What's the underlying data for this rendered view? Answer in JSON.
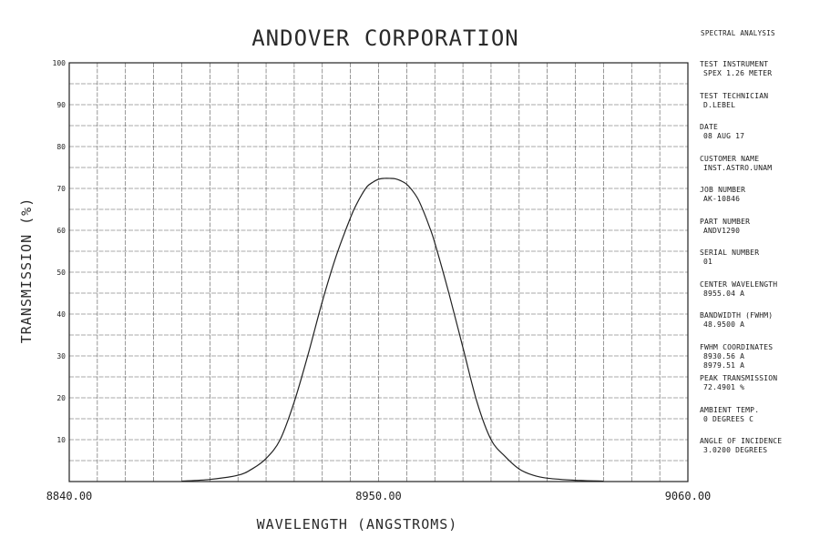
{
  "chart_data": {
    "type": "line",
    "title": "ANDOVER CORPORATION",
    "xlabel": "WAVELENGTH (ANGSTROMS)",
    "ylabel": "TRANSMISSION (%)",
    "xlim": [
      8840,
      9060
    ],
    "ylim": [
      0,
      100
    ],
    "x_tick_labels": [
      "8840.00",
      "8950.00",
      "9060.00"
    ],
    "y_tick_labels": [
      "10",
      "20",
      "30",
      "40",
      "50",
      "60",
      "70",
      "80",
      "90",
      "100"
    ],
    "grid": true,
    "series": [
      {
        "x": [
          8880,
          8890,
          8900,
          8905,
          8910,
          8915,
          8920,
          8925,
          8930,
          8935,
          8940,
          8942,
          8944,
          8946,
          8948,
          8950,
          8952,
          8954,
          8956,
          8958,
          8960,
          8962,
          8964,
          8966,
          8968,
          8970,
          8975,
          8980,
          8985,
          8990,
          8995,
          9000,
          9005,
          9010,
          9020,
          9030
        ],
        "y": [
          0.1,
          0.5,
          1.5,
          3,
          5.5,
          10,
          19,
          30.5,
          43,
          54,
          63,
          66,
          68.5,
          70.5,
          71.5,
          72.2,
          72.4,
          72.4,
          72.3,
          71.8,
          71,
          69.5,
          67.5,
          64.5,
          61,
          57,
          45,
          32,
          19,
          10,
          6,
          3,
          1.5,
          0.8,
          0.3,
          0.1
        ]
      }
    ]
  },
  "info_panel": {
    "header": "SPECTRAL ANALYSIS",
    "fields": [
      {
        "label": "TEST INSTRUMENT",
        "value": "SPEX 1.26 METER"
      },
      {
        "label": "TEST TECHNICIAN",
        "value": "D.LEBEL"
      },
      {
        "label": "DATE",
        "value": "08 AUG 17"
      },
      {
        "label": "CUSTOMER NAME",
        "value": "INST.ASTRO.UNAM"
      },
      {
        "label": "JOB NUMBER",
        "value": "AK-10846"
      },
      {
        "label": "PART NUMBER",
        "value": "ANDV1290"
      },
      {
        "label": "SERIAL NUMBER",
        "value": "01"
      },
      {
        "label": "CENTER WAVELENGTH",
        "value": "8955.04 A"
      },
      {
        "label": "BANDWIDTH (FWHM)",
        "value": "48.9500 A"
      },
      {
        "label": "FWHM COORDINATES",
        "value": "8930.56 A",
        "value2": "8979.51 A"
      },
      {
        "label": "PEAK TRANSMISSION",
        "value": "72.4901 %"
      },
      {
        "label": "AMBIENT TEMP.",
        "value": "0 DEGREES C"
      },
      {
        "label": "ANGLE OF INCIDENCE",
        "value": "3.0200 DEGREES"
      }
    ]
  }
}
